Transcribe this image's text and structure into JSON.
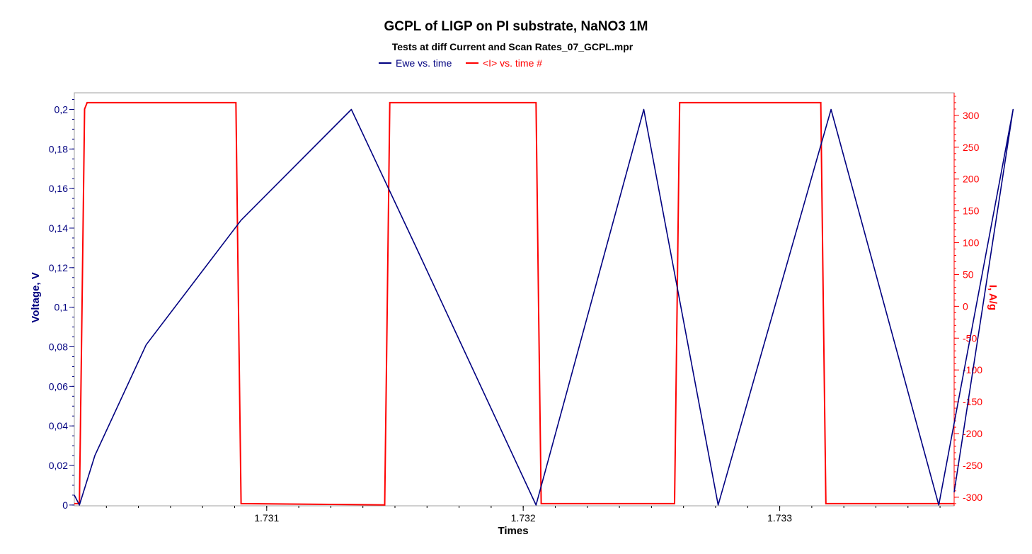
{
  "chart_data": {
    "type": "line",
    "title": "GCPL of LIGP on PI substrate, NaNO3 1M",
    "subtitle": "Tests at diff Current and Scan Rates_07_GCPL.mpr",
    "xlabel": "Times",
    "ylabel": "Voltage, V",
    "y2label": "I, A/g",
    "xlim": [
      1.73025,
      1.73368
    ],
    "ylim": [
      -0.0004,
      0.2084
    ],
    "y2lim": [
      -313.5,
      335.5
    ],
    "x_ticks": [
      "1.731",
      "1.732",
      "1.733"
    ],
    "x_tick_values": [
      1.731,
      1.732,
      1.733
    ],
    "y_ticks": [
      "0",
      "0,02",
      "0,04",
      "0,06",
      "0,08",
      "0,1",
      "0,12",
      "0,14",
      "0,16",
      "0,18",
      "0,2"
    ],
    "y_tick_values": [
      0,
      0.02,
      0.04,
      0.06,
      0.08,
      0.1,
      0.12,
      0.14,
      0.16,
      0.18,
      0.2
    ],
    "y2_ticks": [
      "-300",
      "-250",
      "-200",
      "-150",
      "-100",
      "-50",
      "0",
      "50",
      "100",
      "150",
      "200",
      "250",
      "300"
    ],
    "y2_tick_values": [
      -300,
      -250,
      -200,
      -150,
      -100,
      -50,
      0,
      50,
      100,
      150,
      200,
      250,
      300
    ],
    "legend_position": "top",
    "colors": {
      "ewe": "#000080",
      "current": "#ff0000",
      "frame": "#a0a0a0"
    },
    "series": [
      {
        "name": "Ewe vs. time",
        "axis": "left",
        "x": [
          1.73025,
          1.73027,
          1.73033,
          1.73053,
          1.7309,
          1.73133,
          1.73158,
          1.73205,
          1.73247,
          1.73276,
          1.7332,
          1.73362,
          1.73391,
          1.73368
        ],
        "values": [
          0.005,
          0.0,
          0.025,
          0.081,
          0.144,
          0.2,
          0.131,
          0.0,
          0.2,
          0.0,
          0.2,
          0.0,
          0.2,
          0.0065
        ]
      },
      {
        "name": "<I> vs. time #",
        "axis": "right",
        "x": [
          1.73025,
          1.73027,
          1.73028,
          1.73029,
          1.7303,
          1.73088,
          1.73089,
          1.7309,
          1.73146,
          1.73147,
          1.73148,
          1.73205,
          1.73206,
          1.73207,
          1.73259,
          1.7326,
          1.73261,
          1.73316,
          1.73317,
          1.73318,
          1.73368
        ],
        "values": [
          -310,
          -310,
          0,
          310,
          320,
          320,
          0,
          -310,
          -312,
          0,
          320,
          320,
          0,
          -310,
          -310,
          0,
          320,
          320,
          0,
          -310,
          -310
        ]
      }
    ]
  }
}
